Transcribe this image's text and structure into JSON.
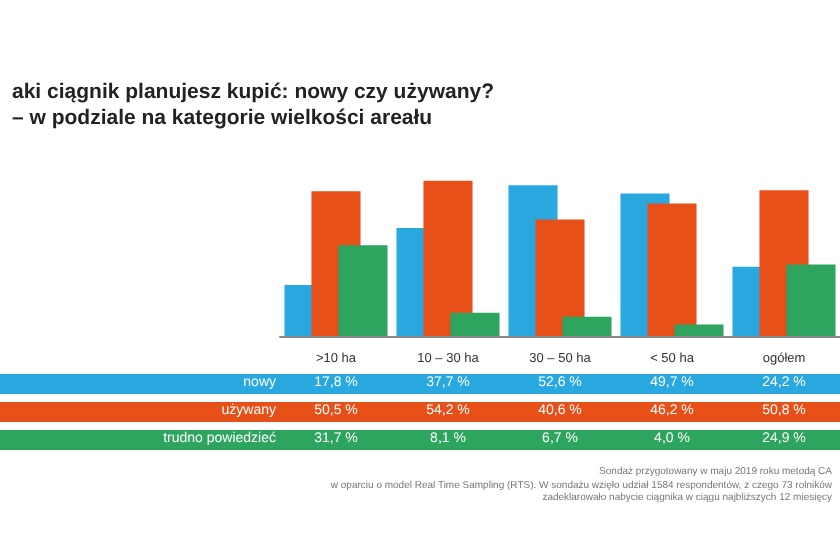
{
  "chart_data": {
    "type": "bar",
    "title": "aki ciągnik planujesz kupić: nowy czy używany?",
    "subtitle": "– w podziale na kategorie wielkości areału",
    "categories": [
      ">10 ha",
      "10 – 30 ha",
      "30 – 50 ha",
      "< 50 ha",
      "ogółem"
    ],
    "series": [
      {
        "name": "nowy",
        "color": "#29a8df",
        "values": [
          17.8,
          37.7,
          52.6,
          49.7,
          24.2
        ],
        "value_labels": [
          "17,8 %",
          "37,7 %",
          "52,6 %",
          "49,7 %",
          "24,2 %"
        ]
      },
      {
        "name": "używany",
        "color": "#e8501a",
        "values": [
          50.5,
          54.2,
          40.6,
          46.2,
          50.8
        ],
        "value_labels": [
          "50,5 %",
          "54,2 %",
          "40,6 %",
          "46,2 %",
          "50,8 %"
        ]
      },
      {
        "name": "trudno powiedzieć",
        "color": "#2da55f",
        "values": [
          31.7,
          8.1,
          6.7,
          4.0,
          24.9
        ],
        "value_labels": [
          "31,7 %",
          "8,1 %",
          "6,7 %",
          "4,0 %",
          "24,9 %"
        ]
      }
    ],
    "grid": false,
    "legend": "bottom",
    "annotations": [
      "Sondaż przygotowany w maju 2019 roku metodą CA",
      "w oparciu o model Real Time Sampling (RTS). W sondażu wzięło udział 1584 respondentów, z czego 73 rolników",
      "zadeklarowało nabycie ciągnika w ciągu najbliższych 12 miesięcy"
    ]
  }
}
